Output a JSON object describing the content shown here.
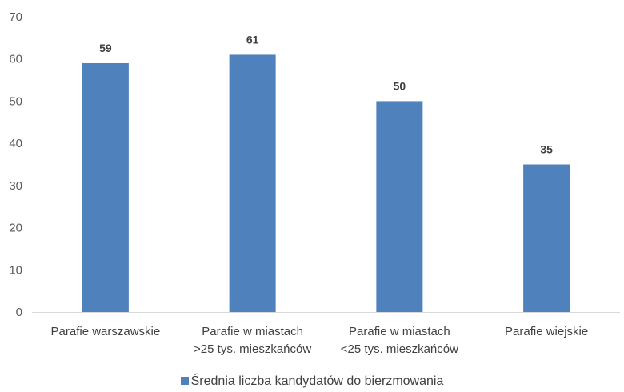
{
  "chart_data": {
    "type": "bar",
    "categories": [
      [
        "Parafie warszawskie"
      ],
      [
        "Parafie w miastach",
        ">25 tys. mieszkańców"
      ],
      [
        "Parafie w miastach",
        "<25 tys. mieszkańców"
      ],
      [
        "Parafie wiejskie"
      ]
    ],
    "series": [
      {
        "name": "Średnia liczba kandydatów do bierzmowania",
        "values": [
          59,
          61,
          50,
          35
        ],
        "color": "#4f81bd"
      }
    ],
    "ylim": [
      0,
      70
    ],
    "yticks": [
      "0",
      "10",
      "20",
      "30",
      "40",
      "50",
      "60",
      "70"
    ],
    "grid": false,
    "data_labels": true,
    "legend_position": "bottom"
  }
}
